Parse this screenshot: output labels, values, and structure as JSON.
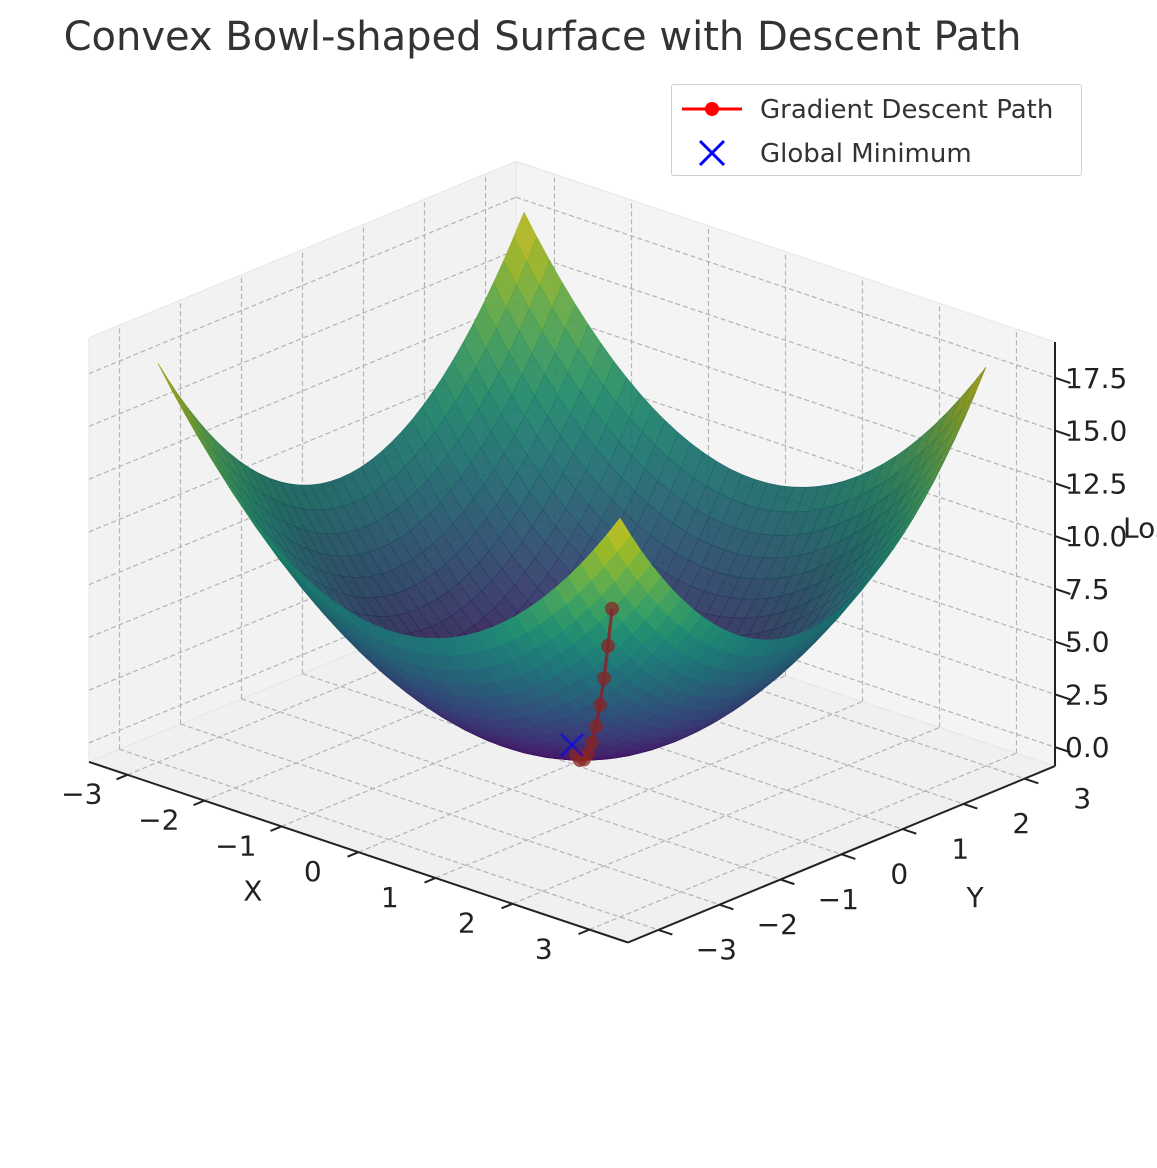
{
  "colors": {
    "path": "#ff0000",
    "minimum": "#0000ff",
    "pane": "#f2f2f2",
    "grid": "#b0b0b0",
    "colormap": "viridis"
  },
  "chart_data": {
    "type": "surface3d",
    "title": "Convex Bowl-shaped Surface with Descent Path",
    "xlabel": "X",
    "ylabel": "Y",
    "zlabel": "Loss",
    "xlim": [
      -3,
      3
    ],
    "ylim": [
      -3,
      3
    ],
    "zlim": [
      0,
      18
    ],
    "x_ticks": [
      "−3",
      "−2",
      "−1",
      "0",
      "1",
      "2",
      "3"
    ],
    "y_ticks": [
      "−3",
      "−2",
      "−1",
      "0",
      "1",
      "2",
      "3"
    ],
    "z_ticks": [
      "0.0",
      "2.5",
      "5.0",
      "7.5",
      "10.0",
      "12.5",
      "15.0",
      "17.5"
    ],
    "surface": "z = x^2 + y^2",
    "grid": true,
    "legend_position": "top-right",
    "legend": [
      {
        "label": "Gradient Descent Path",
        "marker": "line-circle",
        "color": "#ff0000"
      },
      {
        "label": "Global Minimum",
        "marker": "x",
        "color": "#0000ff"
      }
    ],
    "series": [
      {
        "name": "Gradient Descent Path",
        "x": [
          2.5,
          2.25,
          2.0,
          1.75,
          1.5,
          1.25,
          1.0,
          0.75,
          0.5,
          0.25
        ],
        "y": [
          -2.5,
          -2.25,
          -2.0,
          -1.75,
          -1.5,
          -1.25,
          -1.0,
          -0.75,
          -0.5,
          -0.25
        ],
        "z": [
          12.5,
          10.13,
          8.0,
          6.13,
          4.5,
          3.13,
          2.0,
          1.13,
          0.5,
          0.13
        ]
      },
      {
        "name": "Global Minimum",
        "x": [
          0
        ],
        "y": [
          0
        ],
        "z": [
          0
        ]
      }
    ]
  }
}
